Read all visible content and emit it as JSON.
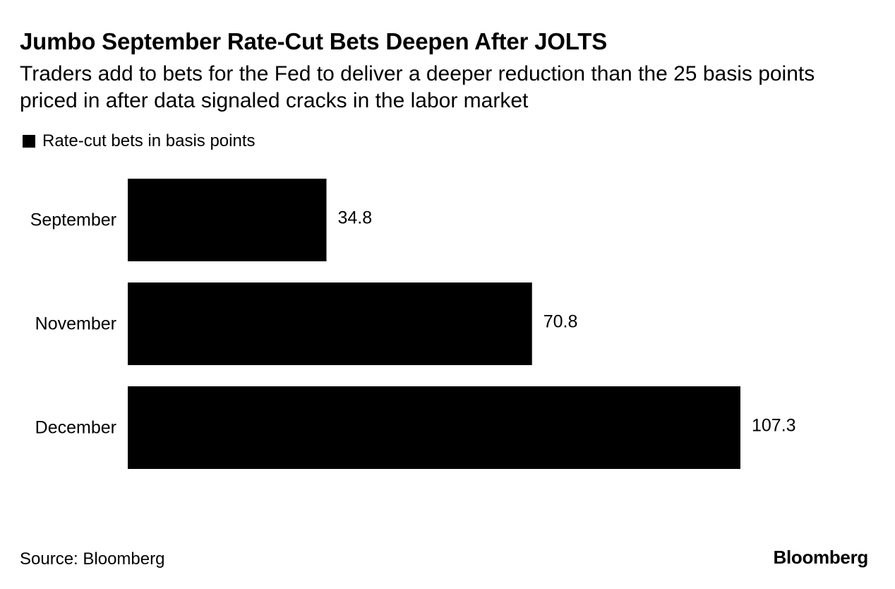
{
  "header": {
    "title": "Jumbo September Rate-Cut Bets Deepen After JOLTS",
    "subtitle": "Traders add to bets for the Fed to deliver a deeper reduction than the 25 basis points priced in after data signaled cracks in the labor market"
  },
  "legend": {
    "label": "Rate-cut bets in basis points",
    "color": "#000000"
  },
  "chart_data": {
    "type": "bar",
    "orientation": "horizontal",
    "title": "Jumbo September Rate-Cut Bets Deepen After JOLTS",
    "subtitle": "Traders add to bets for the Fed to deliver a deeper reduction than the 25 basis points priced in after data signaled cracks in the labor market",
    "categories": [
      "September",
      "November",
      "December"
    ],
    "values": [
      34.8,
      70.8,
      107.3
    ],
    "value_labels": [
      "34.8",
      "70.8",
      "107.3"
    ],
    "series": [
      {
        "name": "Rate-cut bets in basis points",
        "values": [
          34.8,
          70.8,
          107.3
        ],
        "color": "#000000"
      }
    ],
    "xlabel": "",
    "ylabel": "",
    "xlim": [
      0,
      107.3
    ],
    "grid": false,
    "legend_position": "top-left"
  },
  "footer": {
    "source": "Source: Bloomberg",
    "brand": "Bloomberg"
  }
}
